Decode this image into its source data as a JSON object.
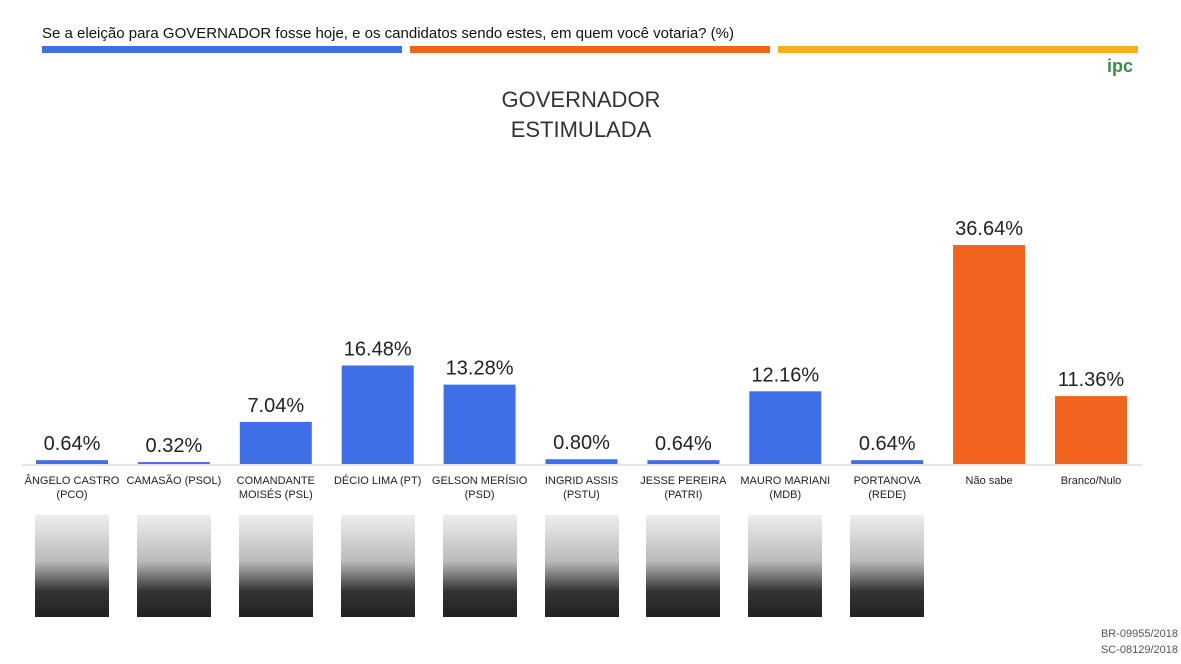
{
  "header": {
    "question": "Se a eleição para GOVERNADOR fosse hoje, e os candidatos sendo estes, em quem você votaria? (%)",
    "logo": "ipc"
  },
  "chart_data": {
    "type": "bar",
    "title": [
      "GOVERNADOR",
      "ESTIMULADA"
    ],
    "categories": [
      "ÂNGELO CASTRO (PCO)",
      "CAMASÃO (PSOL)",
      "COMANDANTE MOISÉS (PSL)",
      "DÉCIO LIMA (PT)",
      "GELSON MERÍSIO (PSD)",
      "INGRID ASSIS (PSTU)",
      "JESSE PEREIRA (PATRI)",
      "MAURO MARIANI (MDB)",
      "PORTANOVA (REDE)",
      "Não sabe",
      "Branco/Nulo"
    ],
    "values": [
      0.64,
      0.32,
      7.04,
      16.48,
      13.28,
      0.8,
      0.64,
      12.16,
      0.64,
      36.64,
      11.36
    ],
    "value_labels": [
      "0.64%",
      "0.32%",
      "7.04%",
      "16.48%",
      "13.28%",
      "0.80%",
      "0.64%",
      "12.16%",
      "0.64%",
      "36.64%",
      "11.36%"
    ],
    "colors": [
      "#3f6fe6",
      "#3f6fe6",
      "#3f6fe6",
      "#3f6fe6",
      "#3f6fe6",
      "#3f6fe6",
      "#3f6fe6",
      "#3f6fe6",
      "#3f6fe6",
      "#f0641e",
      "#f0641e"
    ]
  },
  "footer": [
    "BR-09955/2018",
    "SC-08129/2018"
  ]
}
